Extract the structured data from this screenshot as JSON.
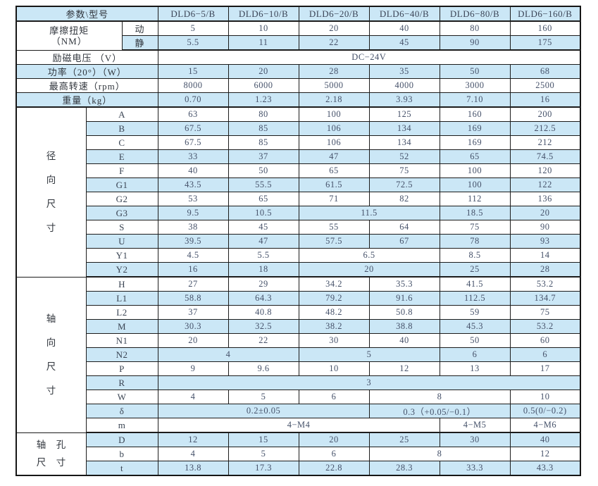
{
  "colors": {
    "row_shade": "#cbe7f6",
    "border": "#1c1c1c",
    "label_text": "#30353c",
    "value_text": "#46526a"
  },
  "table": {
    "corner_label": "参数\\型号",
    "models": [
      "DLD6−5/B",
      "DLD6−10/B",
      "DLD6−20/B",
      "DLD6−40/B",
      "DLD6−80/B",
      "DLD6−160/B"
    ]
  },
  "grid": {
    "rows": [
      {
        "name": "header-row",
        "shade": true,
        "thick": true,
        "cells": [
          {
            "t": "参数\\型号",
            "cs": 3,
            "cls": "lbl",
            "n": "param-model-corner-label"
          },
          {
            "t": "DLD6−5/B",
            "cls": "model",
            "n": "model-header"
          },
          {
            "t": "DLD6−10/B",
            "cls": "model",
            "n": "model-header"
          },
          {
            "t": "DLD6−20/B",
            "cls": "model",
            "n": "model-header"
          },
          {
            "t": "DLD6−40/B",
            "cls": "model",
            "n": "model-header"
          },
          {
            "t": "DLD6−80/B",
            "cls": "model",
            "n": "model-header"
          },
          {
            "t": "DLD6−160/B",
            "cls": "model",
            "n": "model-header"
          }
        ]
      },
      {
        "name": "row-torque-dynamic",
        "shade": false,
        "cells": [
          {
            "lines": [
              "摩擦扭矩",
              "（NM）"
            ],
            "cs": 2,
            "rs": 2,
            "cls": "lbl",
            "n": "row-label-friction-torque"
          },
          {
            "t": "动",
            "cls": "lbl",
            "n": "sub-label-dynamic"
          },
          {
            "t": "5"
          },
          {
            "t": "10"
          },
          {
            "t": "20"
          },
          {
            "t": "40"
          },
          {
            "t": "80"
          },
          {
            "t": "160"
          }
        ]
      },
      {
        "name": "row-torque-static",
        "shade": true,
        "thick": true,
        "cells": [
          {
            "t": "静",
            "cls": "lbl",
            "n": "sub-label-static"
          },
          {
            "t": "5.5"
          },
          {
            "t": "11"
          },
          {
            "t": "22"
          },
          {
            "t": "45"
          },
          {
            "t": "90"
          },
          {
            "t": "175"
          }
        ]
      },
      {
        "name": "row-excitation-voltage",
        "shade": false,
        "cells": [
          {
            "t": "励磁电压 （V）",
            "cs": 3,
            "cls": "lbl",
            "n": "row-label-excitation-voltage"
          },
          {
            "t": "DC−24V",
            "cs": 6,
            "n": "voltage-value"
          }
        ]
      },
      {
        "name": "row-power",
        "shade": true,
        "cells": [
          {
            "t": "功率（20°）（W）",
            "cs": 3,
            "cls": "lbl",
            "n": "row-label-power"
          },
          {
            "t": "15"
          },
          {
            "t": "20"
          },
          {
            "t": "28"
          },
          {
            "t": "35"
          },
          {
            "t": "50"
          },
          {
            "t": "68"
          }
        ]
      },
      {
        "name": "row-max-speed",
        "shade": false,
        "cells": [
          {
            "t": "最高转速（rpm）",
            "cs": 3,
            "cls": "lbl",
            "n": "row-label-max-speed"
          },
          {
            "t": "8000"
          },
          {
            "t": "6000"
          },
          {
            "t": "5000"
          },
          {
            "t": "4000"
          },
          {
            "t": "3000"
          },
          {
            "t": "2500"
          }
        ]
      },
      {
        "name": "row-weight",
        "shade": true,
        "thick": true,
        "cells": [
          {
            "t": "重量（kg）",
            "cs": 3,
            "cls": "lbl",
            "n": "row-label-weight"
          },
          {
            "t": "0.70"
          },
          {
            "t": "1.23"
          },
          {
            "t": "2.18"
          },
          {
            "t": "3.93"
          },
          {
            "t": "7.10"
          },
          {
            "t": "16"
          }
        ]
      },
      {
        "name": "row-dim-A",
        "shade": false,
        "cells": [
          {
            "lines": [
              "径",
              "向",
              "尺",
              "寸"
            ],
            "rs": 12,
            "cls": "vlabel",
            "n": "section-label-radial-dimensions"
          },
          {
            "t": "A",
            "cs": 2,
            "cls": "sub",
            "n": "dim-label"
          },
          {
            "t": "63"
          },
          {
            "t": "80"
          },
          {
            "t": "100"
          },
          {
            "t": "125"
          },
          {
            "t": "160"
          },
          {
            "t": "200"
          }
        ]
      },
      {
        "name": "row-dim-B",
        "shade": true,
        "cells": [
          {
            "t": "B",
            "cs": 2,
            "cls": "sub",
            "n": "dim-label"
          },
          {
            "t": "67.5"
          },
          {
            "t": "85"
          },
          {
            "t": "106"
          },
          {
            "t": "134"
          },
          {
            "t": "169"
          },
          {
            "t": "212.5"
          }
        ]
      },
      {
        "name": "row-dim-C",
        "shade": false,
        "cells": [
          {
            "t": "C",
            "cs": 2,
            "cls": "sub",
            "n": "dim-label"
          },
          {
            "t": "67.5"
          },
          {
            "t": "85"
          },
          {
            "t": "106"
          },
          {
            "t": "134"
          },
          {
            "t": "169"
          },
          {
            "t": "212"
          }
        ]
      },
      {
        "name": "row-dim-E",
        "shade": true,
        "cells": [
          {
            "t": "E",
            "cs": 2,
            "cls": "sub",
            "n": "dim-label"
          },
          {
            "t": "33"
          },
          {
            "t": "37"
          },
          {
            "t": "47"
          },
          {
            "t": "52"
          },
          {
            "t": "65"
          },
          {
            "t": "74.5"
          }
        ]
      },
      {
        "name": "row-dim-F",
        "shade": false,
        "cells": [
          {
            "t": "F",
            "cs": 2,
            "cls": "sub",
            "n": "dim-label"
          },
          {
            "t": "40"
          },
          {
            "t": "50"
          },
          {
            "t": "65"
          },
          {
            "t": "75"
          },
          {
            "t": "100"
          },
          {
            "t": "120"
          }
        ]
      },
      {
        "name": "row-dim-G1",
        "shade": true,
        "cells": [
          {
            "t": "G1",
            "cs": 2,
            "cls": "sub",
            "n": "dim-label"
          },
          {
            "t": "43.5"
          },
          {
            "t": "55.5"
          },
          {
            "t": "61.5"
          },
          {
            "t": "72.5"
          },
          {
            "t": "100"
          },
          {
            "t": "122"
          }
        ]
      },
      {
        "name": "row-dim-G2",
        "shade": false,
        "cells": [
          {
            "t": "G2",
            "cs": 2,
            "cls": "sub",
            "n": "dim-label"
          },
          {
            "t": "53"
          },
          {
            "t": "65"
          },
          {
            "t": "71"
          },
          {
            "t": "82"
          },
          {
            "t": "112"
          },
          {
            "t": "136"
          }
        ]
      },
      {
        "name": "row-dim-G3",
        "shade": true,
        "cells": [
          {
            "t": "G3",
            "cs": 2,
            "cls": "sub",
            "n": "dim-label"
          },
          {
            "t": "9.5"
          },
          {
            "t": "10.5"
          },
          {
            "t": "11.5",
            "cs": 2
          },
          {
            "t": "18.5"
          },
          {
            "t": "20"
          }
        ]
      },
      {
        "name": "row-dim-S",
        "shade": false,
        "cells": [
          {
            "t": "S",
            "cs": 2,
            "cls": "sub",
            "n": "dim-label"
          },
          {
            "t": "38"
          },
          {
            "t": "45"
          },
          {
            "t": "55"
          },
          {
            "t": "64"
          },
          {
            "t": "75"
          },
          {
            "t": "90"
          }
        ]
      },
      {
        "name": "row-dim-U",
        "shade": true,
        "cells": [
          {
            "t": "U",
            "cs": 2,
            "cls": "sub",
            "n": "dim-label"
          },
          {
            "t": "39.5"
          },
          {
            "t": "47"
          },
          {
            "t": "57.5"
          },
          {
            "t": "67"
          },
          {
            "t": "78"
          },
          {
            "t": "93"
          }
        ]
      },
      {
        "name": "row-dim-Y1",
        "shade": false,
        "cells": [
          {
            "t": "Y1",
            "cs": 2,
            "cls": "sub",
            "n": "dim-label"
          },
          {
            "t": "4.5"
          },
          {
            "t": "5.5"
          },
          {
            "t": "6.5",
            "cs": 2
          },
          {
            "t": "8.5"
          },
          {
            "t": "14"
          }
        ]
      },
      {
        "name": "row-dim-Y2",
        "shade": true,
        "thick": true,
        "cells": [
          {
            "t": "Y2",
            "cs": 2,
            "cls": "sub",
            "n": "dim-label"
          },
          {
            "t": "16"
          },
          {
            "t": "18"
          },
          {
            "t": "20",
            "cs": 2
          },
          {
            "t": "25"
          },
          {
            "t": "28"
          }
        ]
      },
      {
        "name": "row-dim-H",
        "shade": false,
        "cells": [
          {
            "lines": [
              "轴",
              "向",
              "尺",
              "寸"
            ],
            "rs": 11,
            "cls": "vlabel",
            "n": "section-label-axial-dimensions"
          },
          {
            "t": "H",
            "cs": 2,
            "cls": "sub",
            "n": "dim-label"
          },
          {
            "t": "27"
          },
          {
            "t": "29"
          },
          {
            "t": "34.2"
          },
          {
            "t": "35.3"
          },
          {
            "t": "41.5"
          },
          {
            "t": "53.2"
          }
        ]
      },
      {
        "name": "row-dim-L1",
        "shade": true,
        "cells": [
          {
            "t": "L1",
            "cs": 2,
            "cls": "sub",
            "n": "dim-label"
          },
          {
            "t": "58.8"
          },
          {
            "t": "64.3"
          },
          {
            "t": "79.2"
          },
          {
            "t": "91.6"
          },
          {
            "t": "112.5"
          },
          {
            "t": "134.7"
          }
        ]
      },
      {
        "name": "row-dim-L2",
        "shade": false,
        "cells": [
          {
            "t": "L2",
            "cs": 2,
            "cls": "sub",
            "n": "dim-label"
          },
          {
            "t": "37"
          },
          {
            "t": "40.8"
          },
          {
            "t": "48.2"
          },
          {
            "t": "50.8"
          },
          {
            "t": "59"
          },
          {
            "t": "75"
          }
        ]
      },
      {
        "name": "row-dim-M",
        "shade": true,
        "cells": [
          {
            "t": "M",
            "cs": 2,
            "cls": "sub",
            "n": "dim-label"
          },
          {
            "t": "30.3"
          },
          {
            "t": "32.5"
          },
          {
            "t": "38.2"
          },
          {
            "t": "38.8"
          },
          {
            "t": "45.3"
          },
          {
            "t": "53.2"
          }
        ]
      },
      {
        "name": "row-dim-N1",
        "shade": false,
        "cells": [
          {
            "t": "N1",
            "cs": 2,
            "cls": "sub",
            "n": "dim-label"
          },
          {
            "t": "20"
          },
          {
            "t": "22"
          },
          {
            "t": "30"
          },
          {
            "t": "40"
          },
          {
            "t": "50"
          },
          {
            "t": "60"
          }
        ]
      },
      {
        "name": "row-dim-N2",
        "shade": true,
        "cells": [
          {
            "t": "N2",
            "cs": 2,
            "cls": "sub",
            "n": "dim-label"
          },
          {
            "t": "4",
            "cs": 2
          },
          {
            "t": "5",
            "cs": 2
          },
          {
            "t": "6"
          },
          {
            "t": "6"
          }
        ]
      },
      {
        "name": "row-dim-P",
        "shade": false,
        "cells": [
          {
            "t": "P",
            "cs": 2,
            "cls": "sub",
            "n": "dim-label"
          },
          {
            "t": "9"
          },
          {
            "t": "9.6"
          },
          {
            "t": "10"
          },
          {
            "t": "12"
          },
          {
            "t": "13"
          },
          {
            "t": "17"
          }
        ]
      },
      {
        "name": "row-dim-R",
        "shade": true,
        "cells": [
          {
            "t": "R",
            "cs": 2,
            "cls": "sub",
            "n": "dim-label"
          },
          {
            "t": "3",
            "cs": 6
          }
        ]
      },
      {
        "name": "row-dim-W",
        "shade": false,
        "cells": [
          {
            "t": "W",
            "cs": 2,
            "cls": "sub",
            "n": "dim-label"
          },
          {
            "t": "4"
          },
          {
            "t": "5"
          },
          {
            "t": "6"
          },
          {
            "t": "8",
            "cs": 2
          },
          {
            "t": "10"
          }
        ]
      },
      {
        "name": "row-dim-delta",
        "shade": true,
        "cells": [
          {
            "t": "δ",
            "cs": 2,
            "cls": "sub",
            "n": "dim-label"
          },
          {
            "t": "0.2±0.05",
            "cs": 3
          },
          {
            "t": "0.3（+0.05/−0.1）",
            "cs": 2
          },
          {
            "t": "0.5(0/−0.2)"
          }
        ]
      },
      {
        "name": "row-dim-m",
        "shade": false,
        "thick": true,
        "cells": [
          {
            "t": "m",
            "cs": 2,
            "cls": "sub",
            "n": "dim-label"
          },
          {
            "t": "4−M4",
            "cs": 4
          },
          {
            "t": "4−M5"
          },
          {
            "t": "4−M6"
          }
        ]
      },
      {
        "name": "row-dim-D",
        "shade": true,
        "cells": [
          {
            "lines": [
              "轴　孔",
              "尺　寸"
            ],
            "rs": 3,
            "cls": "vlabel2",
            "n": "section-label-shaft-hole-dimensions"
          },
          {
            "t": "D",
            "cs": 2,
            "cls": "sub",
            "n": "dim-label"
          },
          {
            "t": "12"
          },
          {
            "t": "15"
          },
          {
            "t": "20"
          },
          {
            "t": "25"
          },
          {
            "t": "30"
          },
          {
            "t": "40"
          }
        ]
      },
      {
        "name": "row-dim-b",
        "shade": false,
        "cells": [
          {
            "t": "b",
            "cs": 2,
            "cls": "sub",
            "n": "dim-label"
          },
          {
            "t": "4"
          },
          {
            "t": "5"
          },
          {
            "t": "6"
          },
          {
            "t": "8",
            "cs": 2
          },
          {
            "t": "12"
          }
        ]
      },
      {
        "name": "row-dim-t",
        "shade": true,
        "cells": [
          {
            "t": "t",
            "cs": 2,
            "cls": "sub",
            "n": "dim-label"
          },
          {
            "t": "13.8"
          },
          {
            "t": "17.3"
          },
          {
            "t": "22.8"
          },
          {
            "t": "28.3"
          },
          {
            "t": "33.3"
          },
          {
            "t": "43.3"
          }
        ]
      }
    ]
  }
}
